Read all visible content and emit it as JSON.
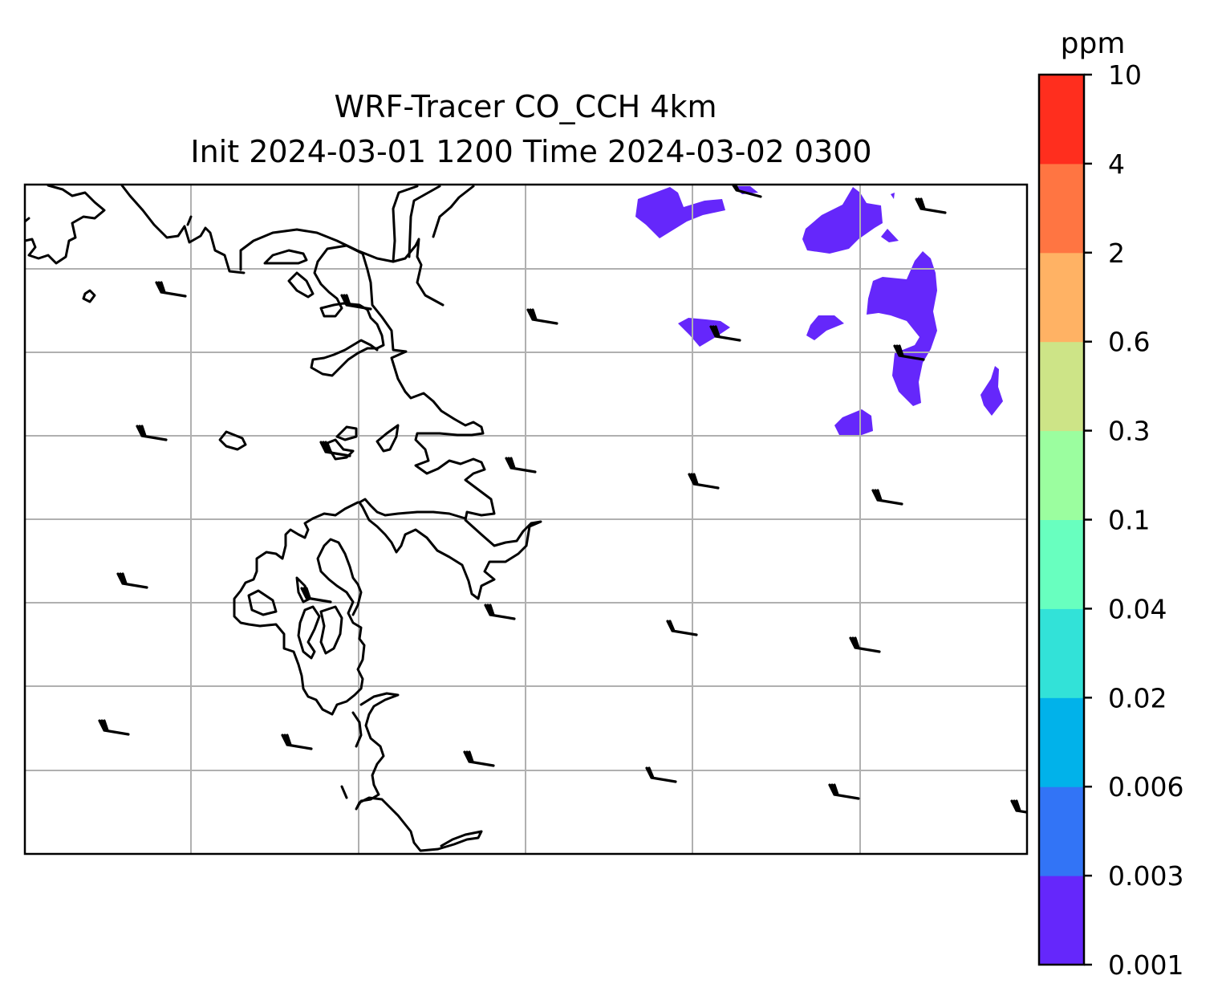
{
  "title": {
    "line1": "WRF-Tracer CO_CCH 4km",
    "line2": "Init 2024-03-01 1200 Time 2024-03-02 0300"
  },
  "colorbar": {
    "units": "ppm",
    "levels": [
      "0.001",
      "0.003",
      "0.006",
      "0.02",
      "0.04",
      "0.1",
      "0.3",
      "0.6",
      "2",
      "4",
      "10"
    ],
    "colors": [
      "#6527fb",
      "#3274f6",
      "#01b2ea",
      "#32e2d8",
      "#68ffbf",
      "#9bfe9f",
      "#cde487",
      "#ffb264",
      "#ff7542",
      "#ff2e1e"
    ]
  },
  "map": {
    "grid": "on",
    "coastline_color": "#000000",
    "gridline_color": "#b0b0b0",
    "tracer_color": "#6527fb",
    "features": [
      "coastline",
      "wind-barbs",
      "tracer-contours"
    ]
  }
}
